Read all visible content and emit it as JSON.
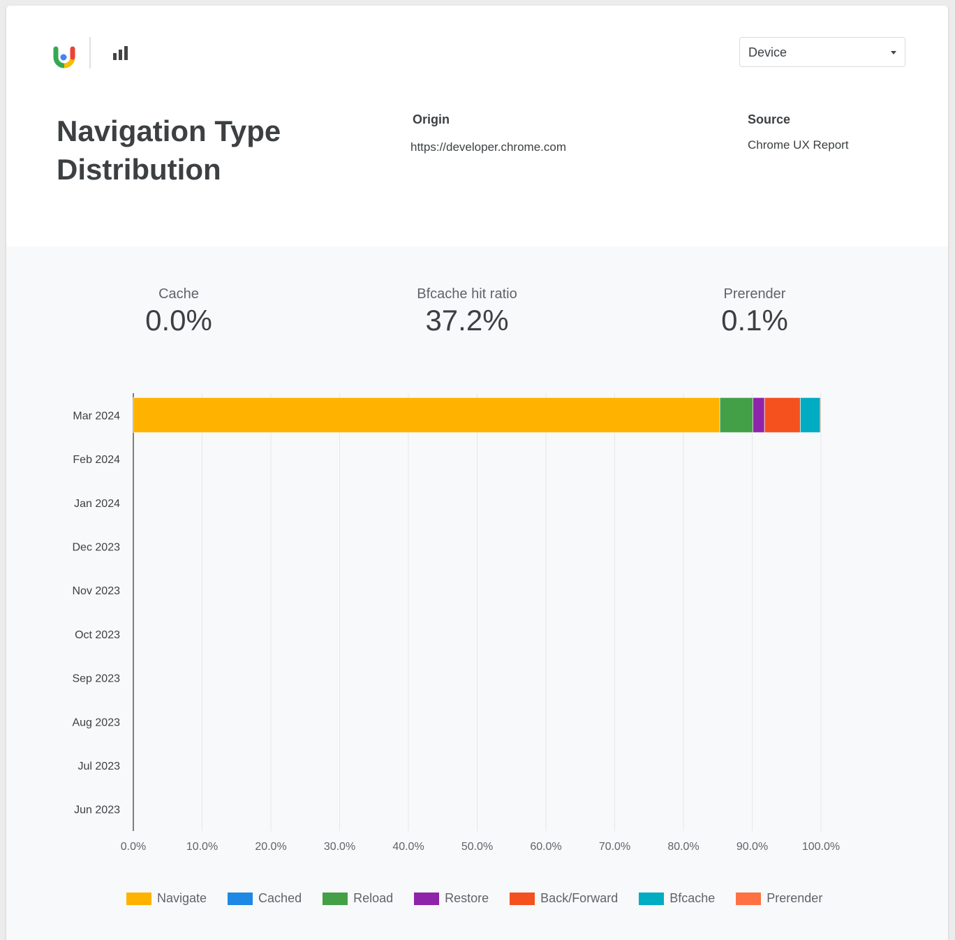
{
  "header": {
    "logo": "chrome-ux-report-logo",
    "chart_icon": "bar-chart-icon",
    "device_select": {
      "value": "Device"
    }
  },
  "title": "Navigation Type Distribution",
  "origin": {
    "label": "Origin",
    "value": "https://developer.chrome.com"
  },
  "source": {
    "label": "Source",
    "value": "Chrome UX Report"
  },
  "kpis": [
    {
      "label": "Cache",
      "value": "0.0%"
    },
    {
      "label": "Bfcache hit ratio",
      "value": "37.2%"
    },
    {
      "label": "Prerender",
      "value": "0.1%"
    }
  ],
  "chart_data": {
    "type": "bar",
    "orientation": "horizontal",
    "stacked": true,
    "categories": [
      "Mar 2024",
      "Feb 2024",
      "Jan 2024",
      "Dec 2023",
      "Nov 2023",
      "Oct 2023",
      "Sep 2023",
      "Aug 2023",
      "Jul 2023",
      "Jun 2023"
    ],
    "xlim": [
      0,
      100
    ],
    "xticks": [
      "0.0%",
      "10.0%",
      "20.0%",
      "30.0%",
      "40.0%",
      "50.0%",
      "60.0%",
      "70.0%",
      "80.0%",
      "90.0%",
      "100.0%"
    ],
    "grid": true,
    "legend": "bottom",
    "series": [
      {
        "name": "Navigate",
        "color": "#ffb300",
        "values": [
          85.3,
          null,
          null,
          null,
          null,
          null,
          null,
          null,
          null,
          null
        ]
      },
      {
        "name": "Cached",
        "color": "#1e88e5",
        "values": [
          0.0,
          null,
          null,
          null,
          null,
          null,
          null,
          null,
          null,
          null
        ]
      },
      {
        "name": "Reload",
        "color": "#43a047",
        "values": [
          4.8,
          null,
          null,
          null,
          null,
          null,
          null,
          null,
          null,
          null
        ]
      },
      {
        "name": "Restore",
        "color": "#8e24aa",
        "values": [
          1.7,
          null,
          null,
          null,
          null,
          null,
          null,
          null,
          null,
          null
        ]
      },
      {
        "name": "Back/Forward",
        "color": "#f4511e",
        "values": [
          5.2,
          null,
          null,
          null,
          null,
          null,
          null,
          null,
          null,
          null
        ]
      },
      {
        "name": "Bfcache",
        "color": "#00acc1",
        "values": [
          2.9,
          null,
          null,
          null,
          null,
          null,
          null,
          null,
          null,
          null
        ]
      },
      {
        "name": "Prerender",
        "color": "#ff7043",
        "values": [
          0.1,
          null,
          null,
          null,
          null,
          null,
          null,
          null,
          null,
          null
        ]
      }
    ]
  }
}
